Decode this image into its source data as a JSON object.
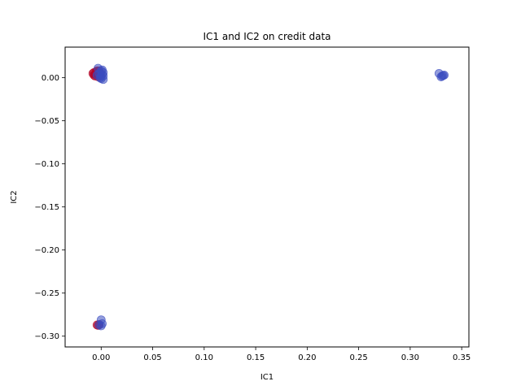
{
  "chart_data": {
    "type": "scatter",
    "title": "IC1 and IC2 on credit data",
    "xlabel": "IC1",
    "ylabel": "IC2",
    "xlim": [
      -0.035,
      0.357
    ],
    "ylim": [
      -0.3125,
      0.0355
    ],
    "xticks": [
      0.0,
      0.05,
      0.1,
      0.15,
      0.2,
      0.25,
      0.3,
      0.35
    ],
    "xtick_labels": [
      "0.00",
      "0.05",
      "0.10",
      "0.15",
      "0.20",
      "0.25",
      "0.30",
      "0.35"
    ],
    "yticks": [
      0.0,
      -0.05,
      -0.1,
      -0.15,
      -0.2,
      -0.25,
      -0.3
    ],
    "ytick_labels": [
      "0.00",
      "−0.05",
      "−0.10",
      "−0.15",
      "−0.20",
      "−0.25",
      "−0.30"
    ],
    "grid": false,
    "colors": {
      "red": "#b40426",
      "blue": "#3b4cc0"
    },
    "series": [
      {
        "color": "#b40426",
        "points": [
          [
            -0.008,
            0.005
          ],
          [
            -0.007,
            0.006
          ],
          [
            -0.006,
            0.004
          ],
          [
            -0.005,
            0.007
          ],
          [
            -0.004,
            0.003
          ],
          [
            -0.003,
            0.006
          ],
          [
            -0.002,
            0.002
          ],
          [
            -0.006,
            0.002
          ],
          [
            -0.004,
            0.008
          ],
          [
            -0.001,
            0.005
          ],
          [
            -0.007,
            0.003
          ],
          [
            -0.002,
            0.008
          ],
          [
            -0.003,
            0.001
          ],
          [
            -0.005,
            0.0045
          ],
          [
            -0.004,
            -0.287
          ],
          [
            -0.003,
            -0.2875
          ],
          [
            -0.002,
            -0.2865
          ]
        ]
      },
      {
        "color": "#3b4cc0",
        "points": [
          [
            -0.003,
            0.011
          ],
          [
            0.0,
            0.008
          ],
          [
            0.001,
            0.004
          ],
          [
            0.002,
            0.006
          ],
          [
            0.002,
            -0.002
          ],
          [
            -0.001,
            0.0
          ],
          [
            0.0,
            0.002
          ],
          [
            -0.002,
            0.005
          ],
          [
            0.001,
            0.009
          ],
          [
            -0.004,
            0.003
          ],
          [
            0.0,
            -0.001
          ],
          [
            0.002,
            0.002
          ],
          [
            0.328,
            0.005
          ],
          [
            0.331,
            0.002
          ],
          [
            0.333,
            0.003
          ],
          [
            0.33,
            0.001
          ],
          [
            0.332,
            0.0025
          ],
          [
            0.0,
            -0.281
          ],
          [
            0.0,
            -0.288
          ],
          [
            -0.002,
            -0.287
          ],
          [
            0.001,
            -0.2855
          ]
        ]
      }
    ]
  }
}
